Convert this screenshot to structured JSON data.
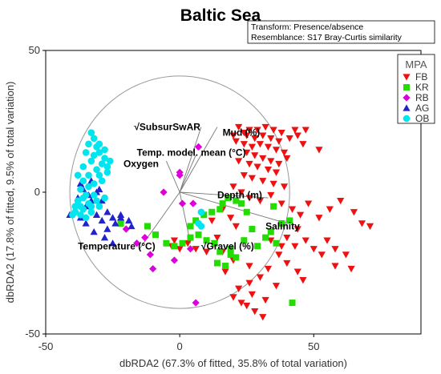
{
  "chart_data": {
    "type": "scatter",
    "title": "Baltic Sea",
    "info_lines": [
      "Transform: Presence/absence",
      "Resemblance: S17 Bray-Curtis similarity"
    ],
    "xlabel": "dbRDA2 (67.3% of fitted, 35.8% of total variation)",
    "ylabel": "dbRDA2 (17.8% of fitted, 9.5% of total variation)",
    "xlim": [
      -50,
      90
    ],
    "ylim": [
      -50,
      50
    ],
    "xticks": [
      -50,
      0,
      50
    ],
    "yticks": [
      -50,
      0,
      50
    ],
    "grid": false,
    "legend_title": "MPA",
    "legend_position": "top-right",
    "circle_radius": 41,
    "series": [
      {
        "name": "FB",
        "color": "#ee1111",
        "marker": "triangle-down",
        "points": [
          [
            22,
            23
          ],
          [
            24,
            21
          ],
          [
            26,
            22
          ],
          [
            29,
            22
          ],
          [
            32,
            23
          ],
          [
            35,
            22
          ],
          [
            38,
            21
          ],
          [
            43,
            22
          ],
          [
            47,
            22
          ],
          [
            20,
            20
          ],
          [
            25,
            20
          ],
          [
            28,
            19
          ],
          [
            31,
            20
          ],
          [
            34,
            19
          ],
          [
            37,
            18
          ],
          [
            41,
            19
          ],
          [
            44,
            20
          ],
          [
            21,
            18
          ],
          [
            24,
            17
          ],
          [
            27,
            16
          ],
          [
            30,
            17
          ],
          [
            33,
            16
          ],
          [
            36,
            15
          ],
          [
            39,
            14
          ],
          [
            25,
            14
          ],
          [
            28,
            13
          ],
          [
            31,
            12
          ],
          [
            34,
            11
          ],
          [
            37,
            10
          ],
          [
            40,
            12
          ],
          [
            46,
            17
          ],
          [
            52,
            15
          ],
          [
            22,
            11
          ],
          [
            26,
            10
          ],
          [
            29,
            9
          ],
          [
            33,
            8
          ],
          [
            36,
            7
          ],
          [
            24,
            6
          ],
          [
            27,
            5
          ],
          [
            31,
            4
          ],
          [
            35,
            3
          ],
          [
            39,
            2
          ],
          [
            20,
            2
          ],
          [
            23,
            0
          ],
          [
            26,
            -2
          ],
          [
            30,
            -3
          ],
          [
            34,
            -1
          ],
          [
            38,
            -4
          ],
          [
            42,
            -6
          ],
          [
            45,
            -8
          ],
          [
            48,
            -4
          ],
          [
            52,
            -9
          ],
          [
            56,
            -6
          ],
          [
            60,
            -3
          ],
          [
            65,
            -7
          ],
          [
            68,
            -11
          ],
          [
            71,
            -12
          ],
          [
            55,
            -17
          ],
          [
            58,
            -20
          ],
          [
            62,
            -22
          ],
          [
            58,
            -26
          ],
          [
            64,
            -27
          ],
          [
            44,
            -13
          ],
          [
            47,
            -17
          ],
          [
            50,
            -20
          ],
          [
            53,
            -22
          ],
          [
            40,
            -16
          ],
          [
            43,
            -19
          ],
          [
            37,
            -22
          ],
          [
            40,
            -25
          ],
          [
            44,
            -28
          ],
          [
            46,
            -31
          ],
          [
            33,
            -27
          ],
          [
            30,
            -30
          ],
          [
            26,
            -32
          ],
          [
            22,
            -34
          ],
          [
            27,
            -36
          ],
          [
            32,
            -38
          ],
          [
            36,
            -33
          ],
          [
            25,
            -40
          ],
          [
            28,
            -42
          ],
          [
            31,
            -44
          ],
          [
            20,
            -37
          ],
          [
            23,
            -39
          ],
          [
            26,
            -26
          ],
          [
            20,
            -24
          ],
          [
            16,
            -21
          ],
          [
            13,
            -18
          ],
          [
            10,
            -21
          ],
          [
            17,
            -28
          ],
          [
            6,
            -20
          ],
          [
            3,
            -18
          ],
          [
            0,
            -20
          ],
          [
            -3,
            -19
          ],
          [
            19,
            -9
          ],
          [
            12,
            -10
          ],
          [
            14,
            -16
          ],
          [
            16,
            -6
          ],
          [
            21,
            -12
          ],
          [
            34,
            -17
          ],
          [
            38,
            -19
          ],
          [
            -2,
            -17
          ]
        ]
      },
      {
        "name": "KR",
        "color": "#22dd00",
        "marker": "square",
        "points": [
          [
            -22,
            -11
          ],
          [
            -12,
            -12
          ],
          [
            -9,
            -15
          ],
          [
            -5,
            -18
          ],
          [
            -2,
            -19
          ],
          [
            1,
            -18
          ],
          [
            4,
            -16
          ],
          [
            7,
            -15
          ],
          [
            10,
            -17
          ],
          [
            13,
            -18
          ],
          [
            15,
            -21
          ],
          [
            19,
            -22
          ],
          [
            21,
            -23
          ],
          [
            24,
            -17
          ],
          [
            27,
            -13
          ],
          [
            29,
            -19
          ],
          [
            32,
            -16
          ],
          [
            34,
            -14
          ],
          [
            36,
            -18
          ],
          [
            38,
            -11
          ],
          [
            41,
            -10
          ],
          [
            35,
            -5
          ],
          [
            25,
            -7
          ],
          [
            23,
            -4
          ],
          [
            21,
            -3
          ],
          [
            18,
            -2
          ],
          [
            16,
            -4
          ],
          [
            15,
            -6
          ],
          [
            12,
            -7
          ],
          [
            9,
            -8
          ],
          [
            6,
            -10
          ],
          [
            4,
            -12
          ],
          [
            14,
            -25
          ],
          [
            17,
            -26
          ],
          [
            19,
            -20
          ],
          [
            42,
            -39
          ]
        ]
      },
      {
        "name": "RB",
        "color": "#dd00dd",
        "marker": "diamond",
        "points": [
          [
            -20,
            -13
          ],
          [
            -16,
            -18
          ],
          [
            -13,
            -16
          ],
          [
            -11,
            -22
          ],
          [
            -6,
            0
          ],
          [
            -10,
            -27
          ],
          [
            -2,
            -24
          ],
          [
            0,
            7
          ],
          [
            0,
            6
          ],
          [
            1,
            -4
          ],
          [
            5,
            -4
          ],
          [
            7,
            16
          ],
          [
            4,
            -20
          ],
          [
            6,
            -39
          ]
        ]
      },
      {
        "name": "AG",
        "color": "#2222cc",
        "marker": "triangle-up",
        "points": [
          [
            -41,
            -8
          ],
          [
            -39,
            -6
          ],
          [
            -37,
            -9
          ],
          [
            -35,
            -5
          ],
          [
            -33,
            -3
          ],
          [
            -31,
            -8
          ],
          [
            -29,
            -10
          ],
          [
            -27,
            -7
          ],
          [
            -25,
            -9
          ],
          [
            -22,
            -8
          ],
          [
            -38,
            -2
          ],
          [
            -36,
            1
          ],
          [
            -34,
            -1
          ],
          [
            -31,
            0
          ],
          [
            -29,
            -3
          ],
          [
            -37,
            3
          ],
          [
            -33,
            4
          ],
          [
            -30,
            1
          ],
          [
            -27,
            -13
          ],
          [
            -24,
            -11
          ],
          [
            -22,
            -9
          ],
          [
            -19,
            -10
          ],
          [
            -28,
            -16
          ],
          [
            -25,
            -18
          ],
          [
            -32,
            -14
          ],
          [
            -18,
            -12
          ],
          [
            -35,
            -11
          ]
        ]
      },
      {
        "name": "OB",
        "color": "#00e5ee",
        "marker": "circle",
        "points": [
          [
            -33,
            21
          ],
          [
            -32,
            19
          ],
          [
            -34,
            17
          ],
          [
            -31,
            16
          ],
          [
            -35,
            14
          ],
          [
            -32,
            13
          ],
          [
            -30,
            14
          ],
          [
            -28,
            12
          ],
          [
            -33,
            11
          ],
          [
            -29,
            10
          ],
          [
            -36,
            9
          ],
          [
            -31,
            8
          ],
          [
            -27,
            9
          ],
          [
            -34,
            6
          ],
          [
            -30,
            6
          ],
          [
            -36,
            4
          ],
          [
            -32,
            3
          ],
          [
            -37,
            1
          ],
          [
            -35,
            -1
          ],
          [
            -38,
            -3
          ],
          [
            -34,
            -4
          ],
          [
            -36,
            -6
          ],
          [
            -39,
            -7
          ],
          [
            -33,
            -7
          ],
          [
            -35,
            -9
          ],
          [
            -31,
            -3
          ],
          [
            -29,
            4
          ],
          [
            -27,
            7
          ],
          [
            -26,
            11
          ],
          [
            -30,
            17
          ],
          [
            -28,
            15
          ],
          [
            -38,
            6
          ],
          [
            -37,
            -5
          ],
          [
            -33,
            -5
          ],
          [
            -36,
            -2
          ],
          [
            -32,
            -1
          ],
          [
            -34,
            2
          ],
          [
            -39,
            -5
          ],
          [
            -28,
            -2
          ],
          [
            -30,
            -5
          ],
          [
            8,
            -7
          ],
          [
            8,
            -12
          ],
          [
            7,
            -11
          ],
          [
            -40,
            -8
          ],
          [
            -37,
            -8
          ]
        ]
      }
    ],
    "vectors": [
      {
        "label": "Mud (%)",
        "x": 14,
        "y": 23,
        "label_x": 16,
        "label_y": 21
      },
      {
        "label": "√SubsurSwAR",
        "x": 8,
        "y": 23,
        "label_x": -17,
        "label_y": 23
      },
      {
        "label": "Temp. model. mean (°C)",
        "x": 6,
        "y": 13,
        "label_x": -16,
        "label_y": 14
      },
      {
        "label": "Oxygen",
        "x": -5,
        "y": 11,
        "label_x": -21,
        "label_y": 10
      },
      {
        "label": "Depth (m)",
        "x": 33,
        "y": -2,
        "label_x": 14,
        "label_y": -1
      },
      {
        "label": "Salinity",
        "x": 40,
        "y": -11,
        "label_x": 32,
        "label_y": -12
      },
      {
        "label": "Temperature (°C)",
        "x": -15,
        "y": -20,
        "label_x": -38,
        "label_y": -19
      },
      {
        "label": "√Gravel (%)",
        "x": 4,
        "y": -18,
        "label_x": 8,
        "label_y": -19
      }
    ]
  }
}
